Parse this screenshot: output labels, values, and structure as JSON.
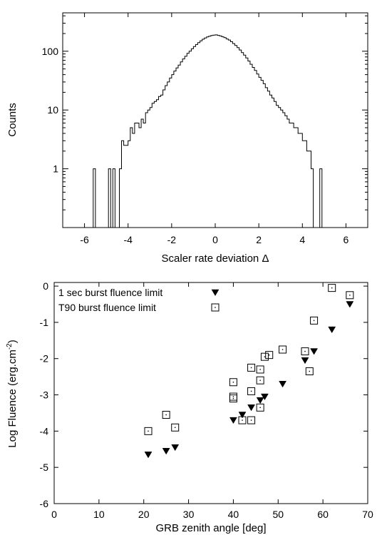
{
  "chart_data": [
    {
      "type": "histogram",
      "xlabel": "Scaler rate deviation Δ",
      "ylabel": "Counts",
      "xlim": [
        -7,
        7
      ],
      "ylim": [
        0.1,
        450
      ],
      "yscale": "log",
      "xticks": [
        -6,
        -4,
        -2,
        0,
        2,
        4,
        6
      ],
      "xtick_labels": [
        "-6",
        "-4",
        "-2",
        "0",
        "2",
        "4",
        "6"
      ],
      "yticks": [
        1,
        10,
        100
      ],
      "ytick_labels": [
        "1",
        "10",
        "100"
      ],
      "bin_width": 0.1,
      "bins": [
        [
          -5.6,
          1
        ],
        [
          -4.9,
          1
        ],
        [
          -4.7,
          1
        ],
        [
          -4.4,
          1
        ],
        [
          -4.3,
          3
        ],
        [
          -4.2,
          2.5
        ],
        [
          -4.1,
          2.5
        ],
        [
          -4.0,
          3
        ],
        [
          -3.9,
          5
        ],
        [
          -3.8,
          4
        ],
        [
          -3.7,
          6
        ],
        [
          -3.6,
          6
        ],
        [
          -3.5,
          5
        ],
        [
          -3.4,
          7
        ],
        [
          -3.3,
          6
        ],
        [
          -3.2,
          9
        ],
        [
          -3.1,
          10
        ],
        [
          -3.0,
          11
        ],
        [
          -2.9,
          13
        ],
        [
          -2.8,
          14
        ],
        [
          -2.7,
          15
        ],
        [
          -2.6,
          17
        ],
        [
          -2.5,
          18
        ],
        [
          -2.4,
          22
        ],
        [
          -2.3,
          26
        ],
        [
          -2.2,
          30
        ],
        [
          -2.1,
          35
        ],
        [
          -2.0,
          40
        ],
        [
          -1.9,
          46
        ],
        [
          -1.8,
          52
        ],
        [
          -1.7,
          58
        ],
        [
          -1.6,
          66
        ],
        [
          -1.5,
          74
        ],
        [
          -1.4,
          82
        ],
        [
          -1.3,
          92
        ],
        [
          -1.2,
          100
        ],
        [
          -1.1,
          110
        ],
        [
          -1.0,
          120
        ],
        [
          -0.9,
          130
        ],
        [
          -0.8,
          140
        ],
        [
          -0.7,
          150
        ],
        [
          -0.6,
          160
        ],
        [
          -0.5,
          168
        ],
        [
          -0.4,
          175
        ],
        [
          -0.3,
          180
        ],
        [
          -0.2,
          185
        ],
        [
          -0.1,
          188
        ],
        [
          0.0,
          190
        ],
        [
          0.1,
          186
        ],
        [
          0.2,
          182
        ],
        [
          0.3,
          176
        ],
        [
          0.4,
          170
        ],
        [
          0.5,
          162
        ],
        [
          0.6,
          155
        ],
        [
          0.7,
          145
        ],
        [
          0.8,
          135
        ],
        [
          0.9,
          125
        ],
        [
          1.0,
          115
        ],
        [
          1.1,
          105
        ],
        [
          1.2,
          95
        ],
        [
          1.3,
          86
        ],
        [
          1.4,
          77
        ],
        [
          1.5,
          68
        ],
        [
          1.6,
          60
        ],
        [
          1.7,
          53
        ],
        [
          1.8,
          47
        ],
        [
          1.9,
          41
        ],
        [
          2.0,
          36
        ],
        [
          2.1,
          32
        ],
        [
          2.2,
          28
        ],
        [
          2.3,
          24
        ],
        [
          2.4,
          21
        ],
        [
          2.5,
          18
        ],
        [
          2.6,
          16
        ],
        [
          2.7,
          14
        ],
        [
          2.8,
          12
        ],
        [
          2.9,
          11
        ],
        [
          3.0,
          10
        ],
        [
          3.1,
          9
        ],
        [
          3.2,
          8
        ],
        [
          3.3,
          7
        ],
        [
          3.4,
          6
        ],
        [
          3.5,
          6
        ],
        [
          3.6,
          5
        ],
        [
          3.7,
          5
        ],
        [
          3.8,
          4
        ],
        [
          3.9,
          4
        ],
        [
          4.0,
          3
        ],
        [
          4.1,
          3
        ],
        [
          4.2,
          2
        ],
        [
          4.3,
          2
        ],
        [
          4.4,
          1
        ],
        [
          4.8,
          1
        ]
      ]
    },
    {
      "type": "scatter",
      "xlabel": "GRB zenith angle [deg]",
      "ylabel_main": "Log Fluence (erg.cm",
      "ylabel_sup": "-2",
      "ylabel_end": ")",
      "xlim": [
        0,
        70
      ],
      "ylim": [
        -6,
        0.1
      ],
      "xticks": [
        0,
        10,
        20,
        30,
        40,
        50,
        60,
        70
      ],
      "xtick_labels": [
        "0",
        "10",
        "20",
        "30",
        "40",
        "50",
        "60",
        "70"
      ],
      "yticks": [
        -6,
        -5,
        -4,
        -3,
        -2,
        -1,
        0
      ],
      "ytick_labels": [
        "-6",
        "-5",
        "-4",
        "-3",
        "-2",
        "-1",
        "0"
      ],
      "legend_position": "top-left",
      "series": [
        {
          "name": "1 sec burst fluence limit",
          "marker": "filled-triangle-down",
          "x": [
            21,
            25,
            27,
            40,
            42,
            44,
            46,
            47,
            51,
            56,
            58,
            62,
            66
          ],
          "y": [
            -4.65,
            -4.55,
            -4.45,
            -3.7,
            -3.55,
            -3.35,
            -3.15,
            -3.05,
            -2.7,
            -2.05,
            -1.8,
            -1.2,
            -0.5
          ]
        },
        {
          "name": "T90 burst fluence limit",
          "marker": "open-square-dot",
          "x": [
            21,
            25,
            27,
            40,
            40,
            40,
            42,
            44,
            44,
            44,
            46,
            46,
            46,
            47,
            48,
            51,
            56,
            57,
            58,
            62,
            66
          ],
          "y": [
            -4.0,
            -3.55,
            -3.9,
            -2.65,
            -3.05,
            -3.1,
            -3.7,
            -2.25,
            -2.9,
            -3.7,
            -2.3,
            -2.6,
            -3.35,
            -1.95,
            -1.9,
            -1.75,
            -1.8,
            -2.35,
            -0.95,
            -0.05,
            -0.25
          ]
        }
      ]
    }
  ]
}
